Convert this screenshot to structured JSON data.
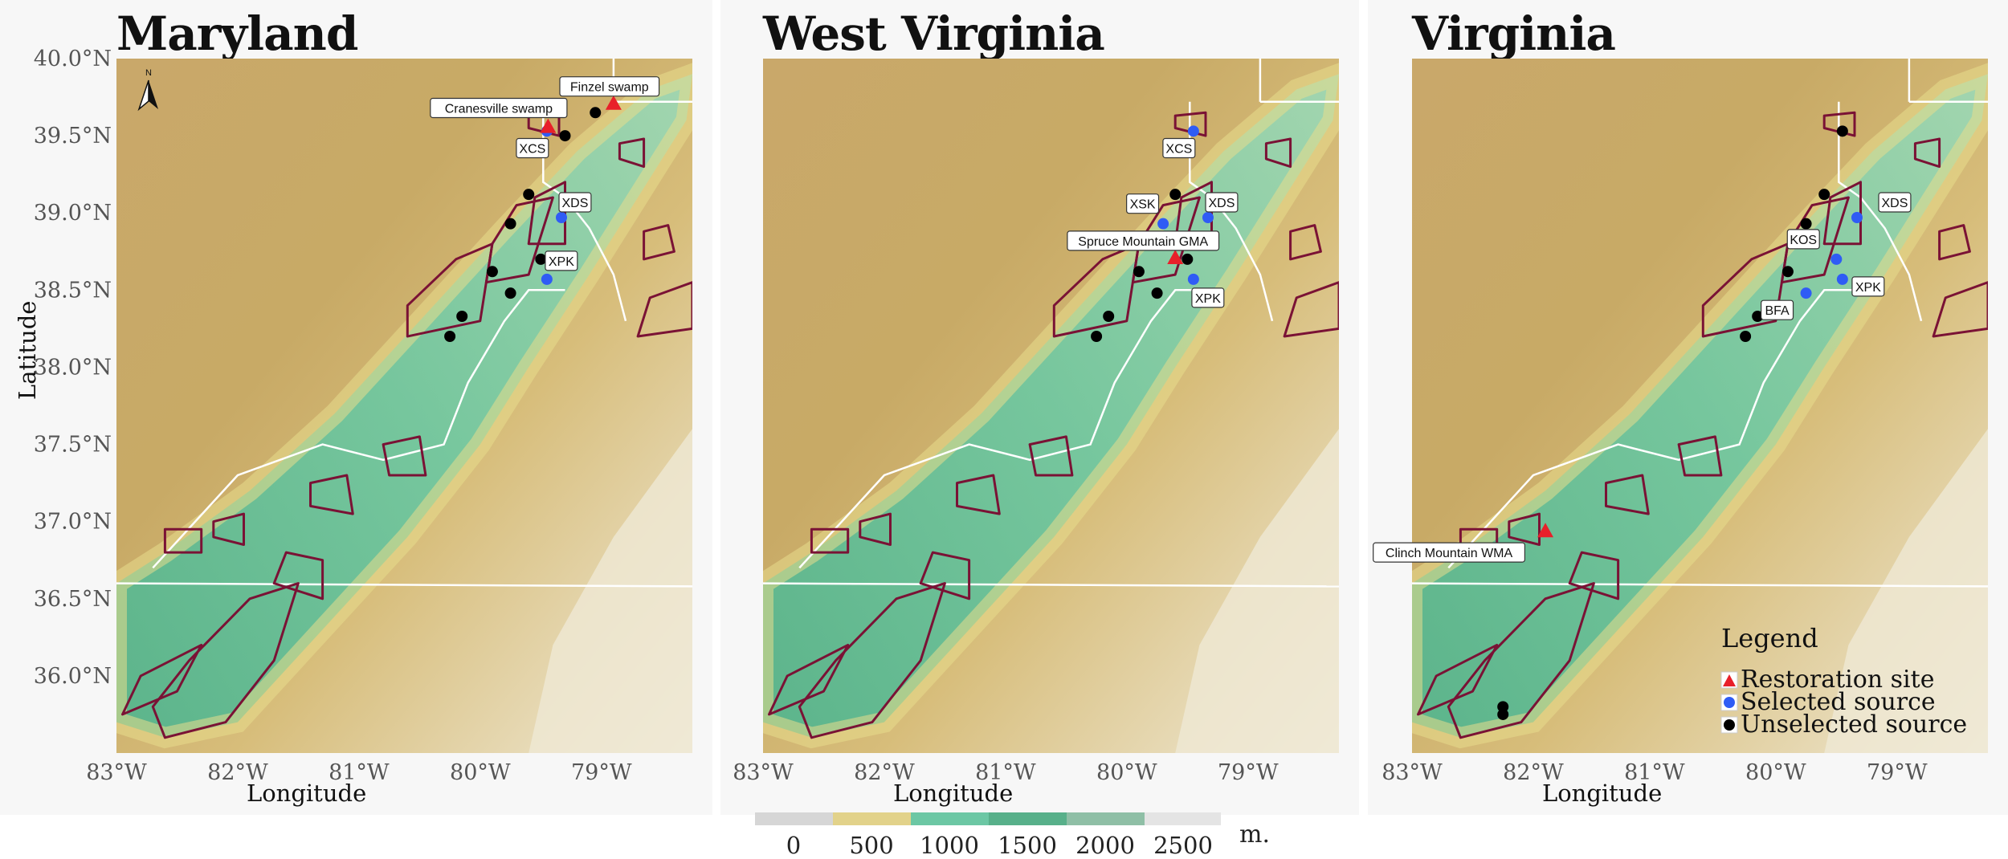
{
  "panels": [
    {
      "id": "md",
      "title": "Maryland",
      "labels": [
        {
          "text": "Finzel swamp",
          "lon": -79.0,
          "lat": 39.7
        },
        {
          "text": "Cranesville swamp",
          "lon": -79.45,
          "lat": 39.55
        },
        {
          "text": "XCS",
          "lon": -79.45,
          "lat": 39.55
        },
        {
          "text": "XDS",
          "lon": -79.35,
          "lat": 38.97
        },
        {
          "text": "XPK",
          "lon": -79.45,
          "lat": 38.57
        }
      ],
      "restoration": [
        [
          -78.9,
          39.71
        ],
        [
          -79.44,
          39.56
        ]
      ],
      "selected": [
        [
          -79.45,
          39.53
        ],
        [
          -79.33,
          38.97
        ],
        [
          -79.45,
          38.57
        ]
      ],
      "unselected": [
        [
          -79.05,
          39.65
        ],
        [
          -79.3,
          39.5
        ],
        [
          -79.6,
          39.12
        ],
        [
          -79.75,
          38.93
        ],
        [
          -79.5,
          38.7
        ],
        [
          -79.9,
          38.62
        ],
        [
          -79.75,
          38.48
        ],
        [
          -80.15,
          38.33
        ],
        [
          -80.25,
          38.2
        ]
      ]
    },
    {
      "id": "wv",
      "title": "West Virginia",
      "labels": [
        {
          "text": "XCS",
          "lon": -79.45,
          "lat": 39.55
        },
        {
          "text": "XSK",
          "lon": -79.75,
          "lat": 38.93
        },
        {
          "text": "XDS",
          "lon": -79.35,
          "lat": 38.97
        },
        {
          "text": "Spruce Mountain GMA",
          "lon": -79.6,
          "lat": 38.7
        },
        {
          "text": "XPK",
          "lon": -79.45,
          "lat": 38.57
        }
      ],
      "restoration": [
        [
          -79.6,
          38.71
        ]
      ],
      "selected": [
        [
          -79.45,
          39.53
        ],
        [
          -79.7,
          38.93
        ],
        [
          -79.33,
          38.97
        ],
        [
          -79.45,
          38.57
        ]
      ],
      "unselected": [
        [
          -79.6,
          39.12
        ],
        [
          -79.5,
          38.7
        ],
        [
          -79.9,
          38.62
        ],
        [
          -79.75,
          38.48
        ],
        [
          -80.15,
          38.33
        ],
        [
          -80.25,
          38.2
        ]
      ]
    },
    {
      "id": "va",
      "title": "Virginia",
      "labels": [
        {
          "text": "XDS",
          "lon": -79.35,
          "lat": 38.97
        },
        {
          "text": "KOS",
          "lon": -79.6,
          "lat": 38.7
        },
        {
          "text": "BFA",
          "lon": -79.75,
          "lat": 38.48
        },
        {
          "text": "XPK",
          "lon": -79.45,
          "lat": 38.57
        },
        {
          "text": "Clinch Mountain WMA",
          "lon": -81.9,
          "lat": 36.93
        }
      ],
      "restoration": [
        [
          -81.9,
          36.94
        ]
      ],
      "selected": [
        [
          -79.33,
          38.97
        ],
        [
          -79.5,
          38.7
        ],
        [
          -79.75,
          38.48
        ],
        [
          -79.45,
          38.57
        ]
      ],
      "unselected": [
        [
          -79.45,
          39.53
        ],
        [
          -79.6,
          39.12
        ],
        [
          -79.75,
          38.93
        ],
        [
          -79.9,
          38.62
        ],
        [
          -80.15,
          38.33
        ],
        [
          -80.25,
          38.2
        ],
        [
          -82.25,
          35.8
        ],
        [
          -82.25,
          35.75
        ]
      ],
      "legend": {
        "title": "Legend",
        "items": [
          "Restoration site",
          "Selected source",
          "Unselected source"
        ]
      }
    }
  ],
  "axes": {
    "xlabel": "Longitude",
    "ylabel": "Latitude",
    "xticks": [
      "83°W",
      "82°W",
      "81°W",
      "80°W",
      "79°W"
    ],
    "xtick_vals": [
      -83,
      -82,
      -81,
      -80,
      -79
    ],
    "yticks": [
      "40.0°N",
      "39.5°N",
      "39.0°N",
      "38.5°N",
      "38.0°N",
      "37.5°N",
      "37.0°N",
      "36.5°N",
      "36.0°N"
    ],
    "ytick_vals": [
      40.0,
      39.5,
      39.0,
      38.5,
      38.0,
      37.5,
      37.0,
      36.5,
      36.0
    ],
    "xlim": [
      -83.0,
      -78.25
    ],
    "ylim": [
      35.5,
      40.0
    ]
  },
  "north_arrow": "N",
  "elevation_legend": {
    "unit": "m.",
    "ticks": [
      "0",
      "500",
      "1000",
      "1500",
      "2000",
      "2500"
    ],
    "colors": [
      "#d6d6d6",
      "#e2d28a",
      "#6cc7a4",
      "#58b08a",
      "#8fbfa6",
      "#e4e4e4"
    ]
  },
  "colors": {
    "restoration": "#e8202a",
    "selected": "#2f5cf5",
    "unselected": "#000000",
    "range_outline": "#7a1235",
    "state_line": "#ffffff"
  }
}
